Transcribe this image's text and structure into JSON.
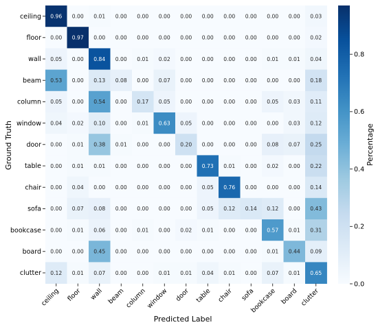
{
  "chart_data": {
    "type": "heatmap",
    "title": "",
    "xlabel": "Predicted Label",
    "ylabel": "Ground Truth",
    "colorbar_label": "Percentage",
    "x_categories": [
      "ceiling",
      "floor",
      "wall",
      "beam",
      "column",
      "window",
      "door",
      "table",
      "chair",
      "sofa",
      "bookcase",
      "board",
      "clutter"
    ],
    "y_categories": [
      "ceiling",
      "floor",
      "wall",
      "beam",
      "column",
      "window",
      "door",
      "table",
      "chair",
      "sofa",
      "bookcase",
      "board",
      "clutter"
    ],
    "values": [
      [
        0.96,
        0.0,
        0.01,
        0.0,
        0.0,
        0.0,
        0.0,
        0.0,
        0.0,
        0.0,
        0.0,
        0.0,
        0.03
      ],
      [
        0.0,
        0.97,
        0.0,
        0.0,
        0.0,
        0.0,
        0.0,
        0.0,
        0.0,
        0.0,
        0.0,
        0.0,
        0.02
      ],
      [
        0.05,
        0.0,
        0.84,
        0.0,
        0.01,
        0.02,
        0.0,
        0.0,
        0.0,
        0.0,
        0.01,
        0.01,
        0.04
      ],
      [
        0.53,
        0.0,
        0.13,
        0.08,
        0.0,
        0.07,
        0.0,
        0.0,
        0.0,
        0.0,
        0.0,
        0.0,
        0.18
      ],
      [
        0.05,
        0.0,
        0.54,
        0.0,
        0.17,
        0.05,
        0.0,
        0.0,
        0.0,
        0.0,
        0.05,
        0.03,
        0.11
      ],
      [
        0.04,
        0.02,
        0.1,
        0.0,
        0.01,
        0.63,
        0.05,
        0.0,
        0.0,
        0.0,
        0.0,
        0.03,
        0.12
      ],
      [
        0.0,
        0.01,
        0.38,
        0.01,
        0.0,
        0.0,
        0.2,
        0.0,
        0.0,
        0.0,
        0.08,
        0.07,
        0.25
      ],
      [
        0.0,
        0.01,
        0.01,
        0.0,
        0.0,
        0.0,
        0.0,
        0.73,
        0.01,
        0.0,
        0.02,
        0.0,
        0.22
      ],
      [
        0.0,
        0.04,
        0.0,
        0.0,
        0.0,
        0.0,
        0.0,
        0.05,
        0.76,
        0.0,
        0.0,
        0.0,
        0.14
      ],
      [
        0.0,
        0.07,
        0.08,
        0.0,
        0.0,
        0.0,
        0.0,
        0.05,
        0.12,
        0.14,
        0.12,
        0.0,
        0.43
      ],
      [
        0.0,
        0.01,
        0.06,
        0.0,
        0.01,
        0.0,
        0.02,
        0.01,
        0.0,
        0.0,
        0.57,
        0.01,
        0.31
      ],
      [
        0.0,
        0.0,
        0.45,
        0.0,
        0.0,
        0.0,
        0.0,
        0.0,
        0.0,
        0.0,
        0.01,
        0.44,
        0.09
      ],
      [
        0.12,
        0.01,
        0.07,
        0.0,
        0.0,
        0.01,
        0.01,
        0.04,
        0.01,
        0.0,
        0.07,
        0.01,
        0.65
      ]
    ],
    "vmin": 0.0,
    "vmax": 0.97,
    "colorbar_ticks": [
      "0.0",
      "0.2",
      "0.4",
      "0.6",
      "0.8"
    ],
    "colormap": "Blues",
    "grid": false
  }
}
